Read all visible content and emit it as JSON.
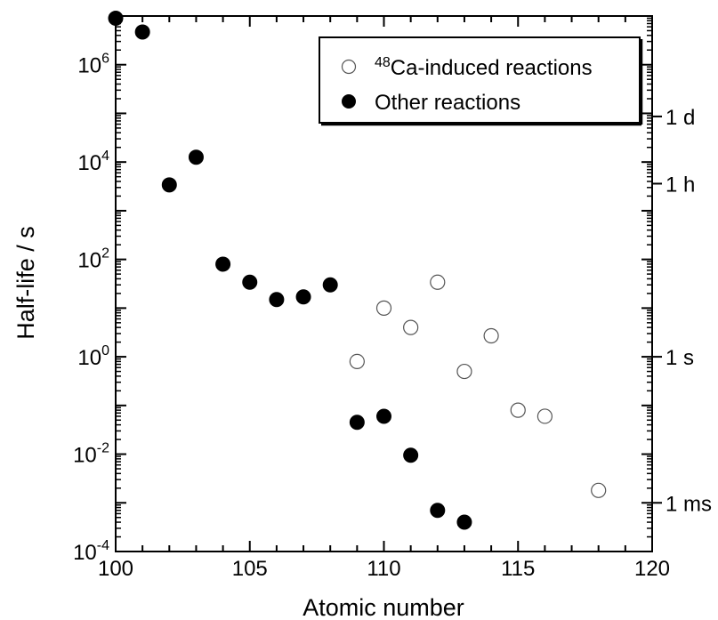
{
  "chart_data": {
    "type": "scatter",
    "xlabel": "Atomic number",
    "ylabel": "Half-life / s",
    "xlim": [
      100,
      120
    ],
    "ylim_log10": [
      -4,
      7
    ],
    "yscale": "log",
    "x_ticks": [
      100,
      105,
      110,
      115,
      120
    ],
    "y_tick_exponents": [
      -4,
      -2,
      0,
      2,
      4,
      6
    ],
    "y_tick_base": "10",
    "right_axis_ticks": [
      {
        "label": "1 d",
        "seconds": 86400
      },
      {
        "label": "1 h",
        "seconds": 3600
      },
      {
        "label": "1 s",
        "seconds": 1
      },
      {
        "label": "1 ms",
        "seconds": 0.001
      }
    ],
    "grid": false,
    "legend": {
      "placement": "top-right",
      "entries": [
        {
          "sup": "48",
          "label": "Ca-induced reactions",
          "marker": "open-circle"
        },
        {
          "sup": "",
          "label": "Other reactions",
          "marker": "filled-circle"
        }
      ]
    },
    "series": [
      {
        "name": "48Ca-induced reactions",
        "marker": "open-circle",
        "points": [
          {
            "x": 109,
            "y": 0.8
          },
          {
            "x": 110,
            "y": 10
          },
          {
            "x": 111,
            "y": 4
          },
          {
            "x": 112,
            "y": 34
          },
          {
            "x": 113,
            "y": 0.5
          },
          {
            "x": 114,
            "y": 2.7
          },
          {
            "x": 115,
            "y": 0.08
          },
          {
            "x": 116,
            "y": 0.06
          },
          {
            "x": 118,
            "y": 0.0018
          }
        ]
      },
      {
        "name": "Other reactions",
        "marker": "filled-circle",
        "points": [
          {
            "x": 100,
            "y": 9000000
          },
          {
            "x": 101,
            "y": 4700000
          },
          {
            "x": 102,
            "y": 3400
          },
          {
            "x": 103,
            "y": 12600
          },
          {
            "x": 104,
            "y": 80
          },
          {
            "x": 105,
            "y": 34
          },
          {
            "x": 106,
            "y": 15
          },
          {
            "x": 107,
            "y": 17
          },
          {
            "x": 108,
            "y": 30
          },
          {
            "x": 109,
            "y": 0.045
          },
          {
            "x": 110,
            "y": 0.06
          },
          {
            "x": 111,
            "y": 0.0095
          },
          {
            "x": 112,
            "y": 0.0007
          },
          {
            "x": 113,
            "y": 0.0004
          }
        ]
      }
    ]
  }
}
